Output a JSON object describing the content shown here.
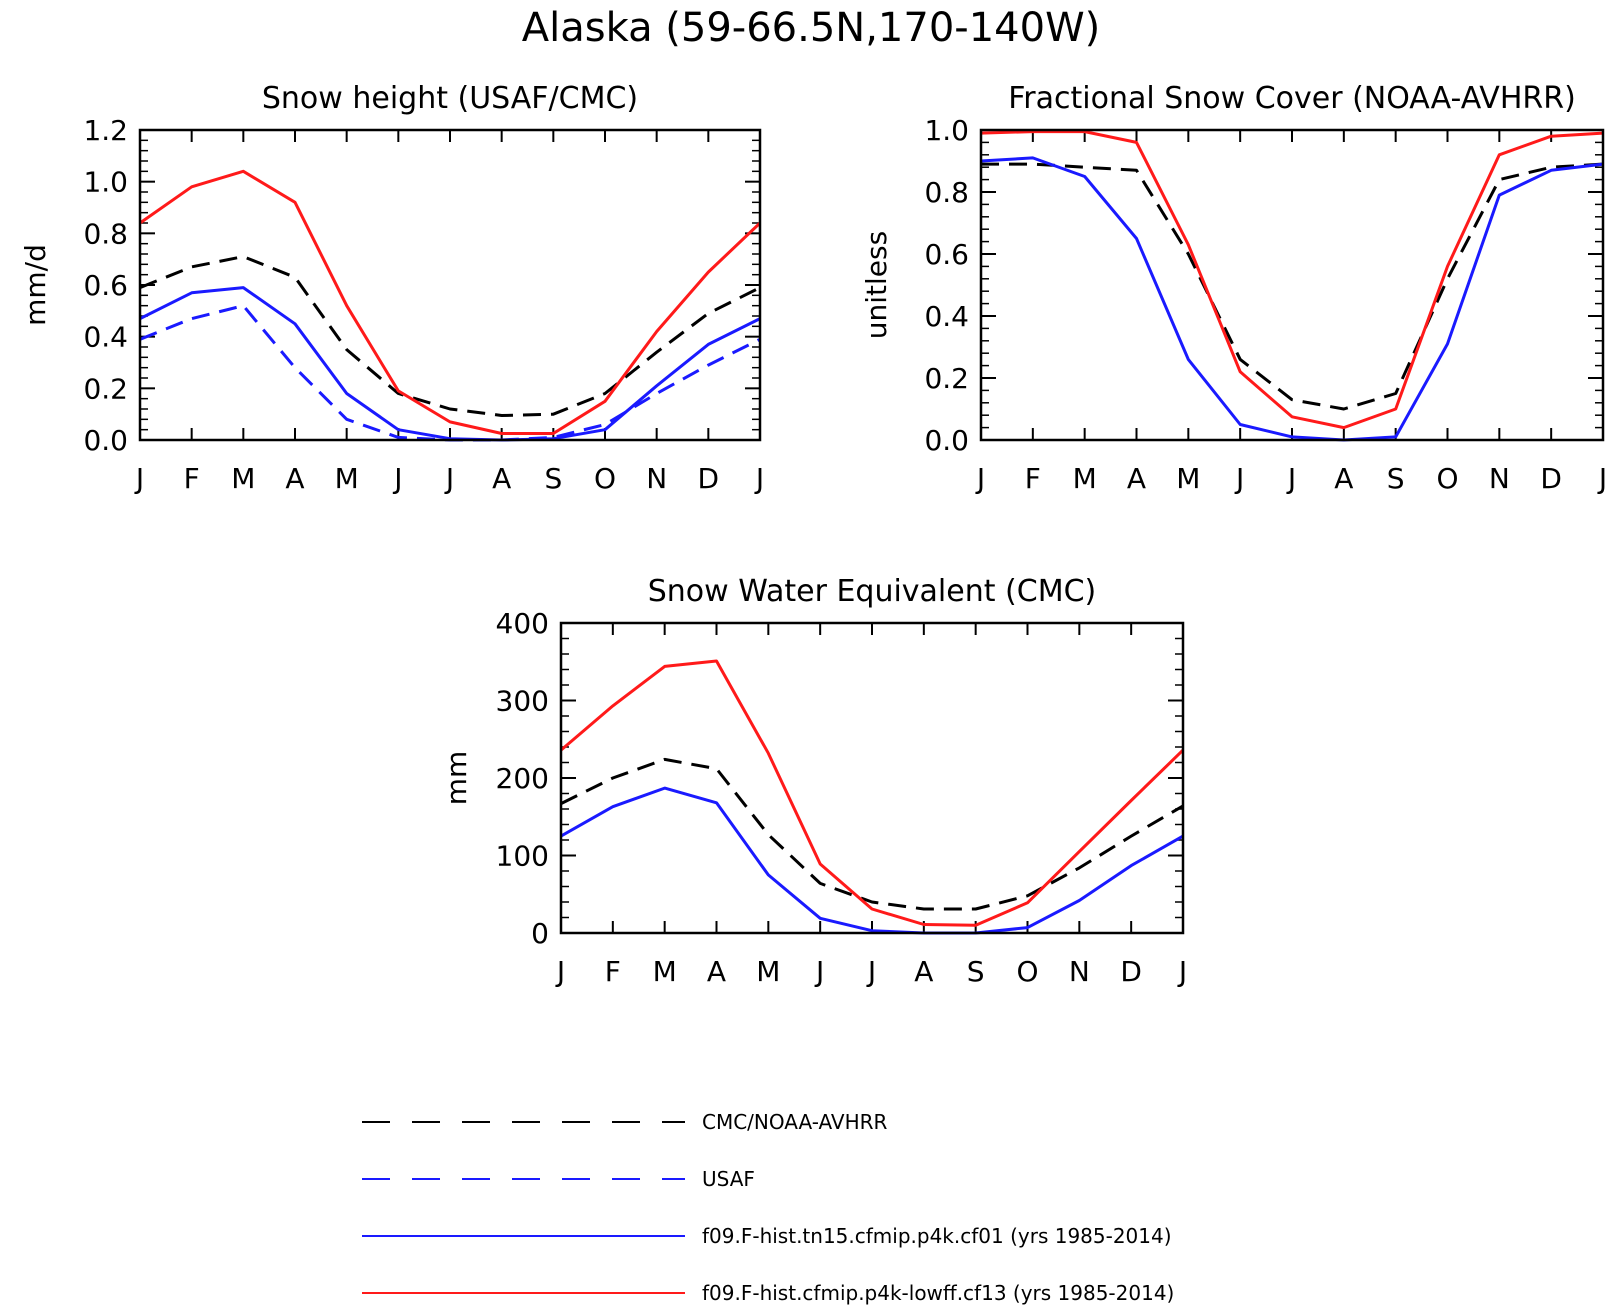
{
  "figure_title": "Alaska (59-66.5N,170-140W)",
  "colors": {
    "obs": "#000000",
    "usaf": "#1a1aff",
    "cf01": "#1a1aff",
    "cf13": "#ff1a1a"
  },
  "chart_data": [
    {
      "type": "line",
      "title": "Snow height (USAF/CMC)",
      "xlabel": "",
      "ylabel": "mm/d",
      "categories": [
        "J",
        "F",
        "M",
        "A",
        "M",
        "J",
        "J",
        "A",
        "S",
        "O",
        "N",
        "D",
        "J"
      ],
      "ylim": [
        0,
        1.2
      ],
      "yticks": [
        0.0,
        0.2,
        0.4,
        0.6,
        0.8,
        1.0,
        1.2
      ],
      "ytick_labels": [
        "0.0",
        "0.2",
        "0.4",
        "0.6",
        "0.8",
        "1.0",
        "1.2"
      ],
      "series": [
        {
          "name": "CMC/NOAA-AVHRR",
          "key": "obs",
          "dash": true,
          "values": [
            0.59,
            0.67,
            0.71,
            0.63,
            0.35,
            0.18,
            0.12,
            0.095,
            0.1,
            0.18,
            0.34,
            0.49,
            0.59
          ]
        },
        {
          "name": "USAF",
          "key": "usaf",
          "dash": true,
          "values": [
            0.39,
            0.47,
            0.52,
            0.28,
            0.08,
            0.01,
            0.0,
            0.0,
            0.01,
            0.06,
            0.18,
            0.29,
            0.39
          ]
        },
        {
          "name": "f09.F-hist.tn15.cfmip.p4k.cf01 (yrs 1985-2014)",
          "key": "cf01",
          "dash": false,
          "values": [
            0.47,
            0.57,
            0.59,
            0.45,
            0.18,
            0.04,
            0.005,
            0.0,
            0.005,
            0.04,
            0.21,
            0.37,
            0.47
          ]
        },
        {
          "name": "f09.F-hist.cfmip.p4k-lowff.cf13 (yrs 1985-2014)",
          "key": "cf13",
          "dash": false,
          "values": [
            0.84,
            0.98,
            1.04,
            0.92,
            0.52,
            0.19,
            0.07,
            0.025,
            0.025,
            0.15,
            0.42,
            0.65,
            0.84
          ]
        }
      ]
    },
    {
      "type": "line",
      "title": "Fractional Snow Cover (NOAA-AVHRR)",
      "xlabel": "",
      "ylabel": "unitless",
      "categories": [
        "J",
        "F",
        "M",
        "A",
        "M",
        "J",
        "J",
        "A",
        "S",
        "O",
        "N",
        "D",
        "J"
      ],
      "ylim": [
        0,
        1.0
      ],
      "yticks": [
        0.0,
        0.2,
        0.4,
        0.6,
        0.8,
        1.0
      ],
      "ytick_labels": [
        "0.0",
        "0.2",
        "0.4",
        "0.6",
        "0.8",
        "1.0"
      ],
      "series": [
        {
          "name": "CMC/NOAA-AVHRR",
          "key": "obs",
          "dash": true,
          "values": [
            0.89,
            0.89,
            0.88,
            0.87,
            0.6,
            0.26,
            0.13,
            0.1,
            0.15,
            0.52,
            0.84,
            0.88,
            0.89
          ]
        },
        {
          "name": "f09.F-hist.tn15.cfmip.p4k.cf01 (yrs 1985-2014)",
          "key": "cf01",
          "dash": false,
          "values": [
            0.9,
            0.91,
            0.85,
            0.65,
            0.26,
            0.05,
            0.01,
            0.0,
            0.01,
            0.31,
            0.79,
            0.87,
            0.89
          ]
        },
        {
          "name": "f09.F-hist.cfmip.p4k-lowff.cf13 (yrs 1985-2014)",
          "key": "cf13",
          "dash": false,
          "values": [
            0.99,
            0.995,
            0.995,
            0.96,
            0.63,
            0.22,
            0.075,
            0.04,
            0.1,
            0.56,
            0.92,
            0.98,
            0.99
          ]
        }
      ]
    },
    {
      "type": "line",
      "title": "Snow Water Equivalent (CMC)",
      "xlabel": "",
      "ylabel": "mm",
      "categories": [
        "J",
        "F",
        "M",
        "A",
        "M",
        "J",
        "J",
        "A",
        "S",
        "O",
        "N",
        "D",
        "J"
      ],
      "ylim": [
        0,
        400
      ],
      "yticks": [
        0,
        100,
        200,
        300,
        400
      ],
      "ytick_labels": [
        "0",
        "100",
        "200",
        "300",
        "400"
      ],
      "series": [
        {
          "name": "CMC/NOAA-AVHRR",
          "key": "obs",
          "dash": true,
          "values": [
            167,
            200,
            224,
            212,
            127,
            64,
            40,
            31,
            31,
            48,
            84,
            125,
            164
          ]
        },
        {
          "name": "f09.F-hist.tn15.cfmip.p4k.cf01 (yrs 1985-2014)",
          "key": "cf01",
          "dash": false,
          "values": [
            125,
            163,
            187,
            168,
            75,
            19,
            3,
            0,
            0,
            7,
            42,
            87,
            125
          ]
        },
        {
          "name": "f09.F-hist.cfmip.p4k-lowff.cf13 (yrs 1985-2014)",
          "key": "cf13",
          "dash": false,
          "values": [
            236,
            293,
            344,
            351,
            232,
            89,
            31,
            11,
            10,
            39,
            105,
            171,
            236
          ]
        }
      ]
    }
  ],
  "legend": [
    {
      "label": "CMC/NOAA-AVHRR",
      "key": "obs",
      "dash": true
    },
    {
      "label": "USAF",
      "key": "usaf",
      "dash": true
    },
    {
      "label": "f09.F-hist.tn15.cfmip.p4k.cf01 (yrs 1985-2014)",
      "key": "cf01",
      "dash": false
    },
    {
      "label": "f09.F-hist.cfmip.p4k-lowff.cf13 (yrs 1985-2014)",
      "key": "cf13",
      "dash": false
    }
  ]
}
